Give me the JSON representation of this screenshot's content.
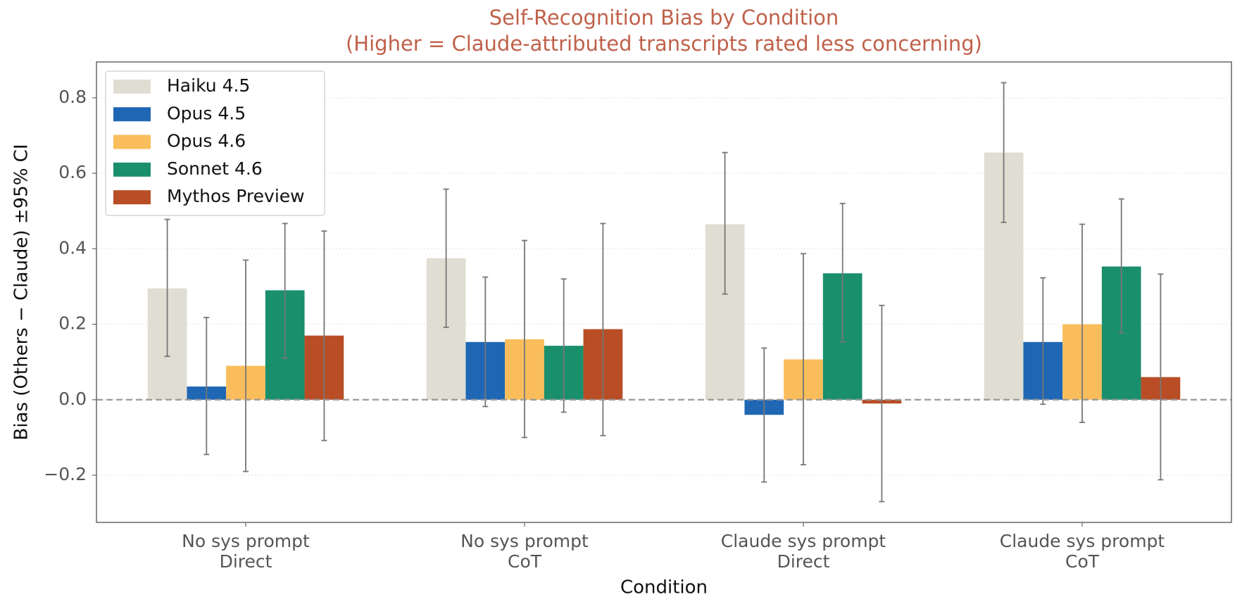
{
  "chart_data": {
    "type": "bar",
    "title": "Self-Recognition Bias by Condition",
    "subtitle": "(Higher = Claude-attributed transcripts rated less concerning)",
    "x_label": "Condition",
    "y_label": "Bias (Others − Claude) ±95% CI",
    "categories": [
      [
        "No sys prompt",
        "Direct"
      ],
      [
        "No sys prompt",
        "CoT"
      ],
      [
        "Claude sys prompt",
        "Direct"
      ],
      [
        "Claude sys prompt",
        "CoT"
      ]
    ],
    "series": [
      {
        "name": "Haiku 4.5",
        "color": "#e0ddd3",
        "values": [
          0.295,
          0.375,
          0.465,
          0.655
        ],
        "ci_low": [
          0.115,
          0.192,
          0.28,
          0.47
        ],
        "ci_high": [
          0.478,
          0.558,
          0.655,
          0.84
        ]
      },
      {
        "name": "Opus 4.5",
        "color": "#1f67b4",
        "values": [
          0.035,
          0.153,
          -0.04,
          0.153
        ],
        "ci_low": [
          -0.145,
          -0.018,
          -0.218,
          -0.012
        ],
        "ci_high": [
          0.218,
          0.325,
          0.137,
          0.323
        ]
      },
      {
        "name": "Opus 4.6",
        "color": "#f9bd5b",
        "values": [
          0.09,
          0.16,
          0.107,
          0.2
        ],
        "ci_low": [
          -0.19,
          -0.1,
          -0.172,
          -0.06
        ],
        "ci_high": [
          0.37,
          0.422,
          0.387,
          0.465
        ]
      },
      {
        "name": "Sonnet 4.6",
        "color": "#1a8f6c",
        "values": [
          0.29,
          0.143,
          0.335,
          0.353
        ],
        "ci_low": [
          0.11,
          -0.033,
          0.153,
          0.177
        ],
        "ci_high": [
          0.467,
          0.32,
          0.52,
          0.532
        ]
      },
      {
        "name": "Mythos Preview",
        "color": "#b84d26",
        "values": [
          0.17,
          0.187,
          -0.01,
          0.06
        ],
        "ci_low": [
          -0.108,
          -0.095,
          -0.27,
          -0.212
        ],
        "ci_high": [
          0.447,
          0.467,
          0.25,
          0.333
        ]
      }
    ],
    "ylim": [
      -0.325,
      0.895
    ],
    "yticks": [
      {
        "value": -0.2,
        "label": "−0.2"
      },
      {
        "value": 0,
        "label": "0.0"
      },
      0.2,
      0.4,
      0.6,
      0.8
    ],
    "reference_line": 0,
    "grid": true,
    "legend": "upper left"
  }
}
